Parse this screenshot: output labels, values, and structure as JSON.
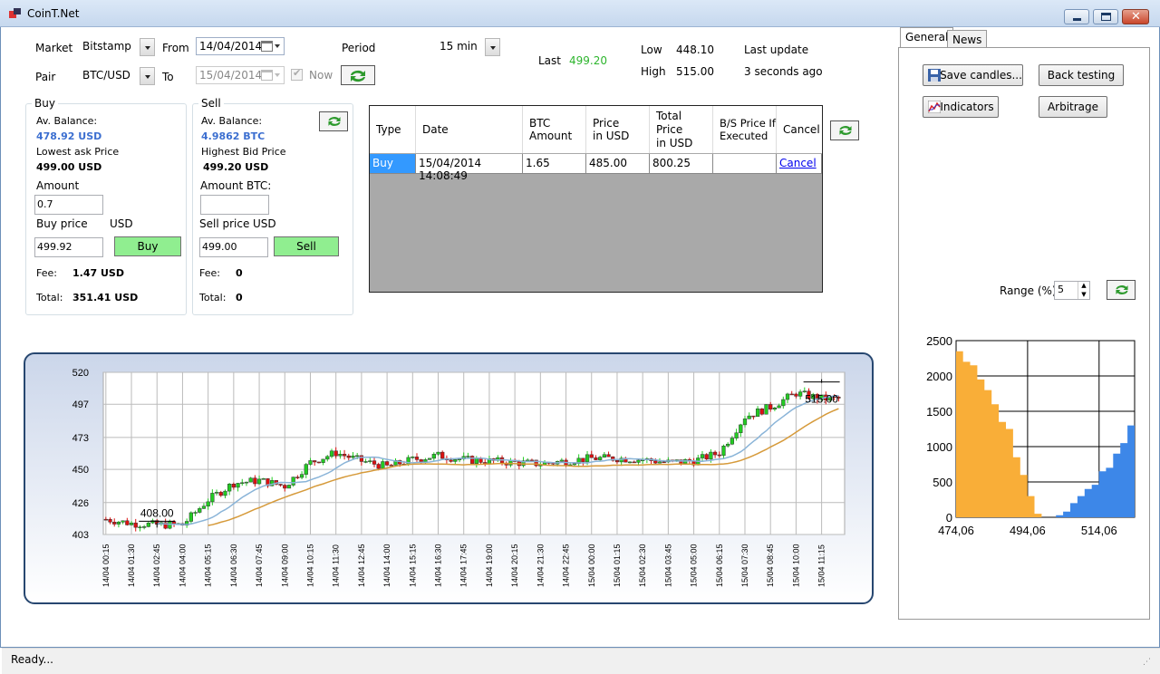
{
  "window": {
    "title": "CoinT.Net"
  },
  "toolbar": {
    "market_label": "Market",
    "market_value": "Bitstamp",
    "pair_label": "Pair",
    "pair_value": "BTC/USD",
    "from_label": "From",
    "from_value": "14/04/2014",
    "to_label": "To",
    "to_value": "15/04/2014",
    "now_label": "Now",
    "now_checked": true,
    "period_label": "Period",
    "period_value": "15 min",
    "last_label": "Last",
    "last_value": "499.20",
    "low_label": "Low",
    "low_value": "448.10",
    "high_label": "High",
    "high_value": "515.00",
    "last_update_label": "Last update",
    "last_update_value": "3 seconds ago"
  },
  "buy": {
    "title": "Buy",
    "balance_label": "Av. Balance:",
    "balance_value": "478.92 USD",
    "price_label": "Lowest ask Price",
    "price_value": "499.00 USD",
    "amount_label": "Amount",
    "amount_value": "0.7",
    "buyprice_label": "Buy price",
    "currency_label": "USD",
    "buyprice_value": "499.92",
    "button": "Buy",
    "fee_label": "Fee:",
    "fee_value": "1.47 USD",
    "total_label": "Total:",
    "total_value": "351.41 USD"
  },
  "sell": {
    "title": "Sell",
    "balance_label": "Av. Balance:",
    "balance_value": "4.9862 BTC",
    "price_label": "Highest Bid Price",
    "price_value": "499.20 USD",
    "amount_label": "Amount BTC:",
    "amount_value": "",
    "sellprice_label": "Sell price",
    "currency_label": "USD",
    "sellprice_value": "499.00",
    "button": "Sell",
    "fee_label": "Fee:",
    "fee_value": "0",
    "total_label": "Total:",
    "total_value": "0"
  },
  "orders": {
    "columns": [
      "Type",
      "Date",
      "BTC\nAmount",
      "Price\nin USD",
      "Total\nPrice\nin USD",
      "B/S Price If\nExecuted",
      "Cancel"
    ],
    "rows": [
      {
        "type": "Buy",
        "date": "15/04/2014 14:08:49",
        "btc_amount": "1.65",
        "price": "485.00",
        "total": "800.25",
        "bs_price": "",
        "cancel": "Cancel"
      }
    ]
  },
  "chart_data": {
    "type": "candlestick",
    "y_ticks": [
      "520",
      "497",
      "473",
      "450",
      "426",
      "403"
    ],
    "ylim": [
      403,
      520
    ],
    "x_ticks": [
      "14/04 00:15",
      "14/04 01:30",
      "14/04 02:45",
      "14/04 04:00",
      "14/04 05:15",
      "14/04 06:30",
      "14/04 07:45",
      "14/04 09:00",
      "14/04 10:15",
      "14/04 11:30",
      "14/04 12:45",
      "14/04 14:00",
      "14/04 15:15",
      "14/04 16:30",
      "14/04 17:45",
      "14/04 19:00",
      "14/04 20:15",
      "14/04 21:30",
      "14/04 22:45",
      "15/04 00:00",
      "15/04 01:15",
      "15/04 02:30",
      "15/04 03:45",
      "15/04 05:00",
      "15/04 06:15",
      "15/04 07:30",
      "15/04 08:45",
      "15/04 10:00",
      "15/04 11:15"
    ],
    "annotations": [
      {
        "text": "408.00",
        "at_tick": "14/04 02:45",
        "value": 408.0
      },
      {
        "text": "515.00",
        "at_tick": "15/04 11:15",
        "value": 515.0
      }
    ],
    "close_by_tick": [
      414,
      411,
      410,
      410,
      428,
      440,
      442,
      438,
      455,
      462,
      456,
      452,
      457,
      460,
      457,
      456,
      455,
      454,
      456,
      458,
      458,
      457,
      455,
      456,
      462,
      488,
      495,
      505,
      501
    ],
    "up_color": "#22cc22",
    "down_color": "#dd1111",
    "ma_colors": [
      "#8ab4d8",
      "#d69a3a"
    ]
  },
  "right": {
    "tabs": [
      "General",
      "News"
    ],
    "active_tab": "General",
    "save_candles": "Save candles...",
    "back_testing": "Back testing",
    "indicators": "Indicators",
    "arbitrage": "Arbitrage",
    "range_label": "Range (%)",
    "range_value": "5"
  },
  "depth_chart": {
    "type": "area",
    "y_ticks": [
      "2500",
      "2000",
      "1500",
      "1000",
      "500",
      "0"
    ],
    "ylim": [
      0,
      2500
    ],
    "x_ticks": [
      "474,06",
      "494,06",
      "514,06"
    ],
    "xlim": [
      474.06,
      524.0
    ],
    "bids": {
      "color": "#f9ae38",
      "x": [
        474.06,
        476,
        478,
        480,
        482,
        484,
        486,
        488,
        490,
        492,
        494,
        496,
        498
      ],
      "y": [
        2350,
        2200,
        2150,
        1950,
        1800,
        1600,
        1350,
        1250,
        850,
        600,
        300,
        50,
        0
      ]
    },
    "asks": {
      "color": "#3d87e8",
      "x": [
        500,
        502,
        504,
        506,
        508,
        510,
        512,
        514,
        516,
        518,
        520,
        522,
        524
      ],
      "y": [
        0,
        30,
        80,
        200,
        300,
        400,
        460,
        650,
        700,
        900,
        1050,
        1300,
        1550
      ]
    }
  },
  "status": {
    "text": "Ready..."
  }
}
